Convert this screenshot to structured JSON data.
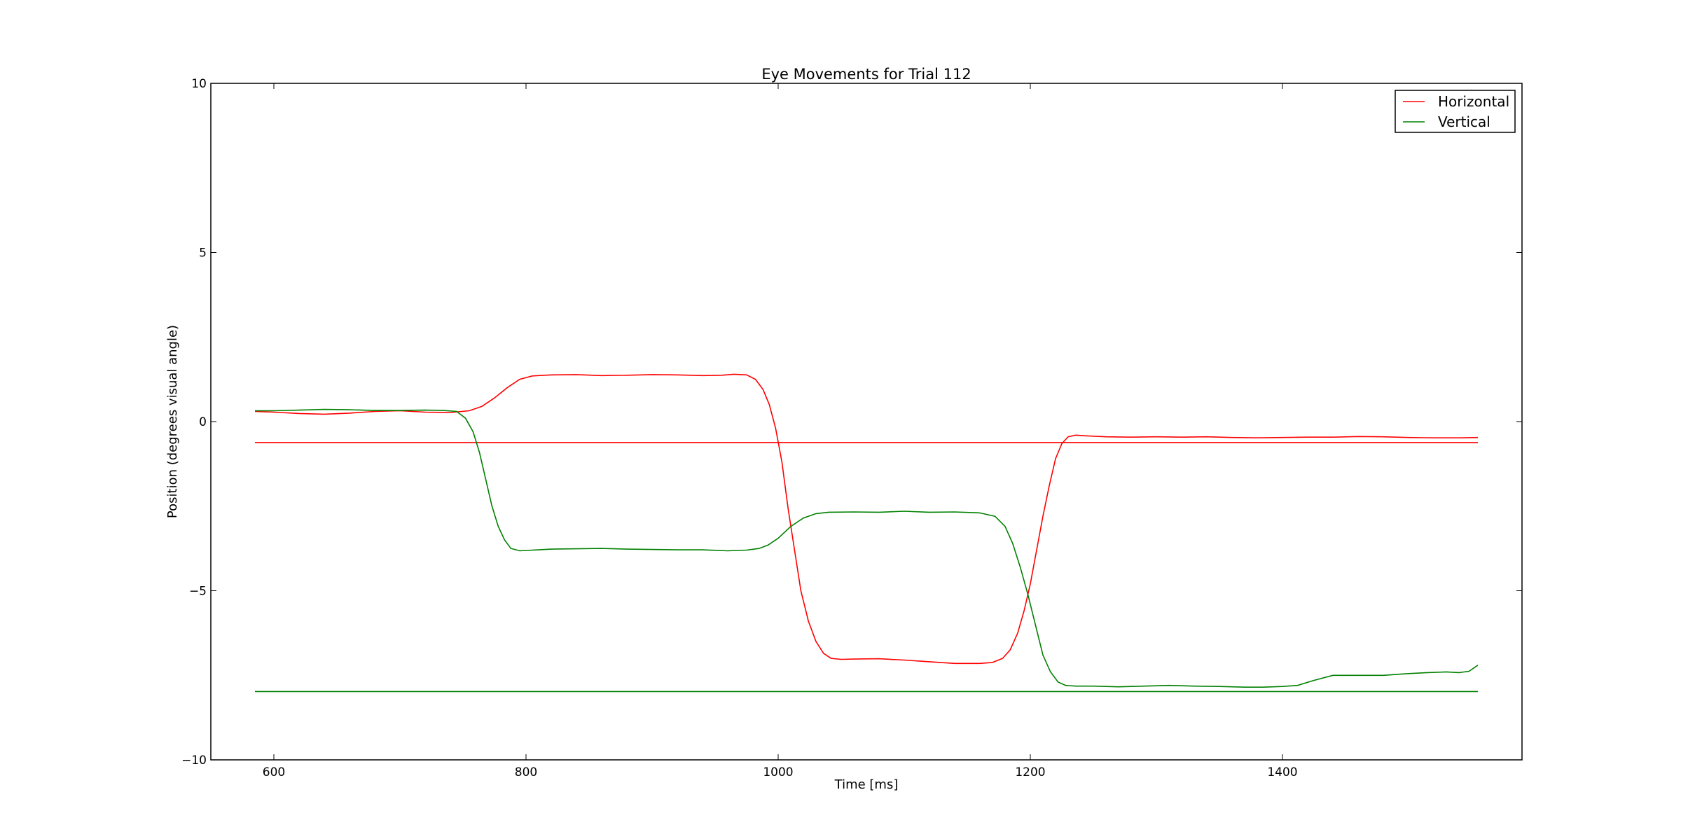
{
  "chart_data": {
    "type": "line",
    "title": "Eye Movements for Trial 112",
    "xlabel": "Time [ms]",
    "ylabel": "Position (degrees visual angle)",
    "xlim": [
      550,
      1590
    ],
    "ylim": [
      -10,
      10
    ],
    "xticks": [
      600,
      800,
      1000,
      1200,
      1400
    ],
    "xtick_labels": [
      "600",
      "800",
      "1000",
      "1200",
      "1400"
    ],
    "yticks": [
      -10,
      -5,
      0,
      5,
      10
    ],
    "ytick_labels": [
      "−10",
      "−5",
      "0",
      "5",
      "10"
    ],
    "grid": false,
    "legend_position": "top-right",
    "series": [
      {
        "name": "Horizontal",
        "color": "#ff0000",
        "x": [
          585,
          600,
          620,
          640,
          660,
          680,
          700,
          720,
          740,
          755,
          765,
          775,
          785,
          795,
          805,
          820,
          840,
          860,
          880,
          900,
          920,
          940,
          955,
          965,
          975,
          982,
          988,
          993,
          998,
          1003,
          1008,
          1013,
          1018,
          1024,
          1030,
          1036,
          1042,
          1050,
          1060,
          1080,
          1100,
          1120,
          1140,
          1160,
          1170,
          1178,
          1184,
          1190,
          1195,
          1200,
          1205,
          1210,
          1215,
          1220,
          1225,
          1230,
          1236,
          1244,
          1260,
          1280,
          1300,
          1320,
          1340,
          1360,
          1380,
          1400,
          1420,
          1440,
          1460,
          1480,
          1500,
          1520,
          1540,
          1555
        ],
        "values": [
          0.3,
          0.28,
          0.24,
          0.22,
          0.25,
          0.3,
          0.32,
          0.28,
          0.27,
          0.32,
          0.45,
          0.7,
          1.0,
          1.25,
          1.35,
          1.38,
          1.39,
          1.36,
          1.37,
          1.39,
          1.38,
          1.36,
          1.37,
          1.4,
          1.38,
          1.25,
          0.95,
          0.5,
          -0.2,
          -1.2,
          -2.6,
          -3.8,
          -5.0,
          -5.9,
          -6.5,
          -6.85,
          -7.0,
          -7.03,
          -7.02,
          -7.01,
          -7.05,
          -7.1,
          -7.15,
          -7.15,
          -7.12,
          -7.0,
          -6.75,
          -6.25,
          -5.6,
          -4.8,
          -3.8,
          -2.8,
          -1.9,
          -1.1,
          -0.65,
          -0.45,
          -0.4,
          -0.42,
          -0.45,
          -0.46,
          -0.45,
          -0.46,
          -0.45,
          -0.47,
          -0.48,
          -0.47,
          -0.46,
          -0.46,
          -0.44,
          -0.45,
          -0.47,
          -0.48,
          -0.48,
          -0.47
        ]
      },
      {
        "name": "Horizontal",
        "color": "#ff0000",
        "x": [
          585,
          1555
        ],
        "values": [
          -0.62,
          -0.62
        ]
      },
      {
        "name": "Vertical",
        "color": "#008000",
        "x": [
          585,
          600,
          620,
          640,
          660,
          680,
          700,
          720,
          735,
          745,
          752,
          758,
          763,
          768,
          773,
          778,
          783,
          788,
          795,
          805,
          820,
          840,
          860,
          880,
          900,
          920,
          940,
          960,
          975,
          985,
          992,
          1000,
          1010,
          1020,
          1030,
          1040,
          1060,
          1080,
          1100,
          1120,
          1140,
          1160,
          1172,
          1180,
          1186,
          1192,
          1198,
          1204,
          1210,
          1216,
          1222,
          1228,
          1236,
          1250,
          1270,
          1290,
          1310,
          1330,
          1350,
          1370,
          1385,
          1400,
          1412,
          1425,
          1440,
          1460,
          1480,
          1500,
          1515,
          1530,
          1540,
          1548,
          1555
        ],
        "values": [
          0.32,
          0.32,
          0.34,
          0.36,
          0.35,
          0.33,
          0.33,
          0.34,
          0.33,
          0.3,
          0.1,
          -0.3,
          -0.9,
          -1.7,
          -2.5,
          -3.1,
          -3.5,
          -3.75,
          -3.82,
          -3.8,
          -3.77,
          -3.76,
          -3.75,
          -3.77,
          -3.78,
          -3.79,
          -3.79,
          -3.82,
          -3.8,
          -3.75,
          -3.65,
          -3.45,
          -3.1,
          -2.85,
          -2.72,
          -2.68,
          -2.67,
          -2.68,
          -2.65,
          -2.68,
          -2.67,
          -2.7,
          -2.8,
          -3.1,
          -3.6,
          -4.3,
          -5.1,
          -6.0,
          -6.9,
          -7.4,
          -7.7,
          -7.8,
          -7.82,
          -7.82,
          -7.84,
          -7.82,
          -7.8,
          -7.82,
          -7.83,
          -7.85,
          -7.85,
          -7.83,
          -7.8,
          -7.65,
          -7.5,
          -7.5,
          -7.5,
          -7.45,
          -7.42,
          -7.4,
          -7.42,
          -7.38,
          -7.2
        ]
      },
      {
        "name": "Vertical",
        "color": "#008000",
        "x": [
          585,
          1555
        ],
        "values": [
          -7.98,
          -7.98
        ]
      }
    ],
    "legend": [
      {
        "label": "Horizontal",
        "color": "#ff0000"
      },
      {
        "label": "Vertical",
        "color": "#008000"
      }
    ]
  }
}
